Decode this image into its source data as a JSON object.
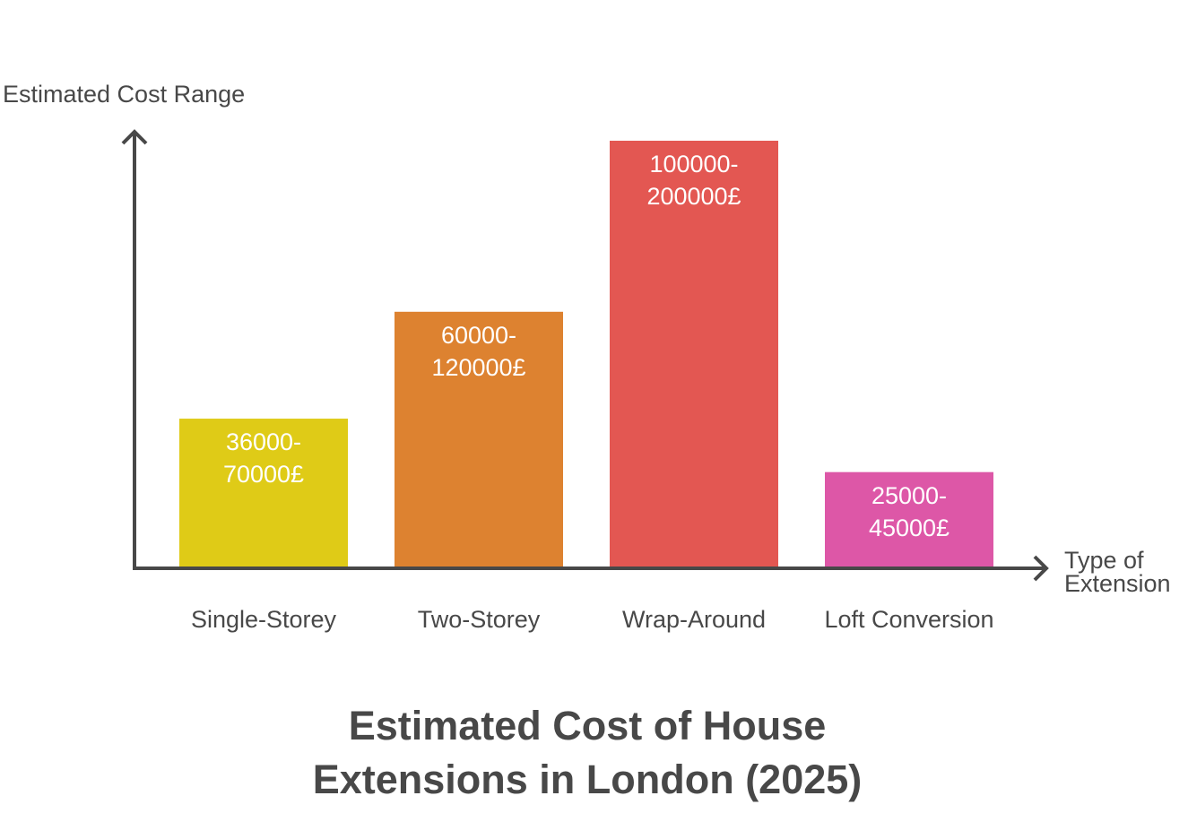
{
  "chart_data": {
    "type": "bar",
    "title": "Estimated Cost of House Extensions in London (2025)",
    "title_lines": [
      "Estimated Cost of House",
      "Extensions in London (2025)"
    ],
    "xlabel": "Type of Extension",
    "xlabel_lines": [
      "Type of",
      "Extension"
    ],
    "ylabel": "Estimated Cost Range",
    "categories": [
      "Single-Storey",
      "Two-Storey",
      "Wrap-Around",
      "Loft Conversion"
    ],
    "ranges": [
      [
        36000,
        70000
      ],
      [
        60000,
        120000
      ],
      [
        100000,
        200000
      ],
      [
        25000,
        45000
      ]
    ],
    "labels": [
      [
        "36000-",
        "70000£"
      ],
      [
        "60000-",
        "120000£"
      ],
      [
        "100000-",
        "200000£"
      ],
      [
        "25000-",
        "45000£"
      ]
    ],
    "colors": [
      "#DFCB17",
      "#DD8230",
      "#E35752",
      "#DD57A7"
    ],
    "ylim": [
      0,
      200000
    ],
    "grid": false
  }
}
